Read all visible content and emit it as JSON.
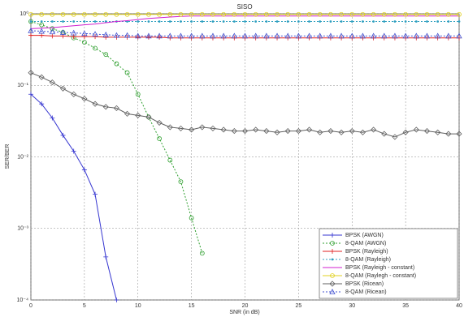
{
  "chart_data": {
    "type": "line",
    "title": "SISO",
    "x_label": "SNR (in dB)",
    "y_label": "SER/BER",
    "x": [
      0,
      1,
      2,
      3,
      4,
      5,
      6,
      7,
      8,
      9,
      10,
      11,
      12,
      13,
      14,
      15,
      16,
      17,
      18,
      19,
      20,
      21,
      22,
      23,
      24,
      25,
      26,
      27,
      28,
      29,
      30,
      31,
      32,
      33,
      34,
      35,
      36,
      37,
      38,
      39,
      40
    ],
    "xlim": [
      0,
      40
    ],
    "xticks": [
      0,
      5,
      10,
      15,
      20,
      25,
      30,
      35,
      40
    ],
    "ylim": [
      0.0001,
      1
    ],
    "y_scale": "log",
    "yticks": [
      {
        "value": 0.0001,
        "label": "10⁻⁴"
      },
      {
        "value": 0.001,
        "label": "10⁻³"
      },
      {
        "value": 0.01,
        "label": "10⁻²"
      },
      {
        "value": 0.1,
        "label": "10⁻¹"
      },
      {
        "value": 1,
        "label": "10⁰"
      }
    ],
    "grid": true,
    "legend": "lower right",
    "series": [
      {
        "name": "BPSK (AWGN)",
        "color": "#3535d0",
        "marker": "plus",
        "dash": "solid",
        "values": [
          0.075,
          0.055,
          0.035,
          0.02,
          0.012,
          0.0066,
          0.003,
          0.0004,
          0.0001,
          null,
          null,
          null,
          null,
          null,
          null,
          null,
          null,
          null,
          null,
          null,
          null,
          null,
          null,
          null,
          null,
          null,
          null,
          null,
          null,
          null,
          null,
          null,
          null,
          null,
          null,
          null,
          null,
          null,
          null,
          null,
          null
        ]
      },
      {
        "name": "8-QAM (AWGN)",
        "color": "#2f9f2f",
        "marker": "circle",
        "dash": "dotted",
        "values": [
          0.78,
          0.7,
          0.62,
          0.55,
          0.46,
          0.4,
          0.33,
          0.27,
          0.2,
          0.15,
          0.075,
          0.036,
          0.018,
          0.009,
          0.0045,
          0.0014,
          0.00045,
          null,
          null,
          null,
          null,
          null,
          null,
          null,
          null,
          null,
          null,
          null,
          null,
          null,
          null,
          null,
          null,
          null,
          null,
          null,
          null,
          null,
          null,
          null,
          null
        ]
      },
      {
        "name": "BPSK (Rayleigh)",
        "color": "#e02020",
        "marker": "plus",
        "dash": "solid",
        "values": [
          0.5,
          0.5,
          0.49,
          0.49,
          0.48,
          0.48,
          0.48,
          0.47,
          0.47,
          0.47,
          0.47,
          0.47,
          0.47,
          0.46,
          0.46,
          0.46,
          0.46,
          0.46,
          0.46,
          0.46,
          0.46,
          0.46,
          0.46,
          0.46,
          0.46,
          0.46,
          0.46,
          0.46,
          0.46,
          0.46,
          0.46,
          0.46,
          0.46,
          0.46,
          0.46,
          0.46,
          0.46,
          0.46,
          0.46,
          0.46,
          0.46
        ]
      },
      {
        "name": "8-QAM (Rayleigh)",
        "color": "#30a0c0",
        "marker": "dot",
        "dash": "dotted",
        "values": [
          0.78,
          0.78,
          0.78,
          0.78,
          0.78,
          0.78,
          0.78,
          0.78,
          0.78,
          0.78,
          0.78,
          0.78,
          0.78,
          0.78,
          0.78,
          0.78,
          0.78,
          0.78,
          0.78,
          0.78,
          0.78,
          0.78,
          0.78,
          0.78,
          0.78,
          0.78,
          0.78,
          0.78,
          0.78,
          0.78,
          0.78,
          0.78,
          0.78,
          0.78,
          0.78,
          0.78,
          0.78,
          0.78,
          0.78,
          0.78,
          0.78
        ]
      },
      {
        "name": "BPSK (Rayleigh - constant)",
        "color": "#d020d0",
        "marker": "none",
        "dash": "solid",
        "values": [
          0.62,
          0.63,
          0.64,
          0.66,
          0.68,
          0.7,
          0.72,
          0.75,
          0.78,
          0.8,
          0.83,
          0.86,
          0.88,
          0.9,
          0.92,
          0.93,
          0.93,
          0.93,
          0.93,
          0.93,
          0.93,
          0.93,
          0.93,
          0.93,
          0.93,
          0.93,
          0.93,
          0.93,
          0.93,
          0.93,
          0.93,
          0.93,
          0.93,
          0.93,
          0.93,
          0.93,
          0.93,
          0.93,
          0.93,
          0.93,
          0.93
        ]
      },
      {
        "name": "8-QAM (Raylegh - constant)",
        "color": "#e0d020",
        "marker": "circle",
        "dash": "solid",
        "values": [
          0.98,
          0.98,
          0.98,
          0.98,
          0.98,
          0.98,
          0.98,
          0.98,
          0.98,
          0.98,
          0.98,
          0.98,
          0.98,
          0.98,
          0.98,
          0.98,
          0.98,
          0.98,
          0.98,
          0.98,
          0.98,
          0.98,
          0.98,
          0.98,
          0.98,
          0.98,
          0.98,
          0.98,
          0.98,
          0.98,
          0.98,
          0.98,
          0.98,
          0.98,
          0.98,
          0.98,
          0.98,
          0.98,
          0.98,
          0.98,
          0.98
        ]
      },
      {
        "name": "BPSK (Ricean)",
        "color": "#606060",
        "marker": "diamond",
        "dash": "solid",
        "values": [
          0.15,
          0.13,
          0.11,
          0.09,
          0.075,
          0.065,
          0.055,
          0.05,
          0.048,
          0.04,
          0.038,
          0.036,
          0.03,
          0.026,
          0.025,
          0.024,
          0.026,
          0.025,
          0.024,
          0.023,
          0.023,
          0.024,
          0.023,
          0.022,
          0.023,
          0.023,
          0.024,
          0.022,
          0.023,
          0.022,
          0.023,
          0.022,
          0.024,
          0.021,
          0.019,
          0.022,
          0.024,
          0.023,
          0.022,
          0.021,
          0.021
        ]
      },
      {
        "name": "8-QAM (Ricean)",
        "color": "#4050d0",
        "marker": "triangle",
        "dash": "dotted",
        "values": [
          0.58,
          0.57,
          0.56,
          0.55,
          0.54,
          0.53,
          0.52,
          0.51,
          0.5,
          0.5,
          0.49,
          0.49,
          0.49,
          0.49,
          0.49,
          0.49,
          0.49,
          0.49,
          0.49,
          0.49,
          0.49,
          0.49,
          0.49,
          0.49,
          0.49,
          0.49,
          0.49,
          0.49,
          0.49,
          0.49,
          0.49,
          0.49,
          0.49,
          0.49,
          0.49,
          0.49,
          0.49,
          0.49,
          0.49,
          0.49,
          0.49
        ]
      }
    ]
  }
}
